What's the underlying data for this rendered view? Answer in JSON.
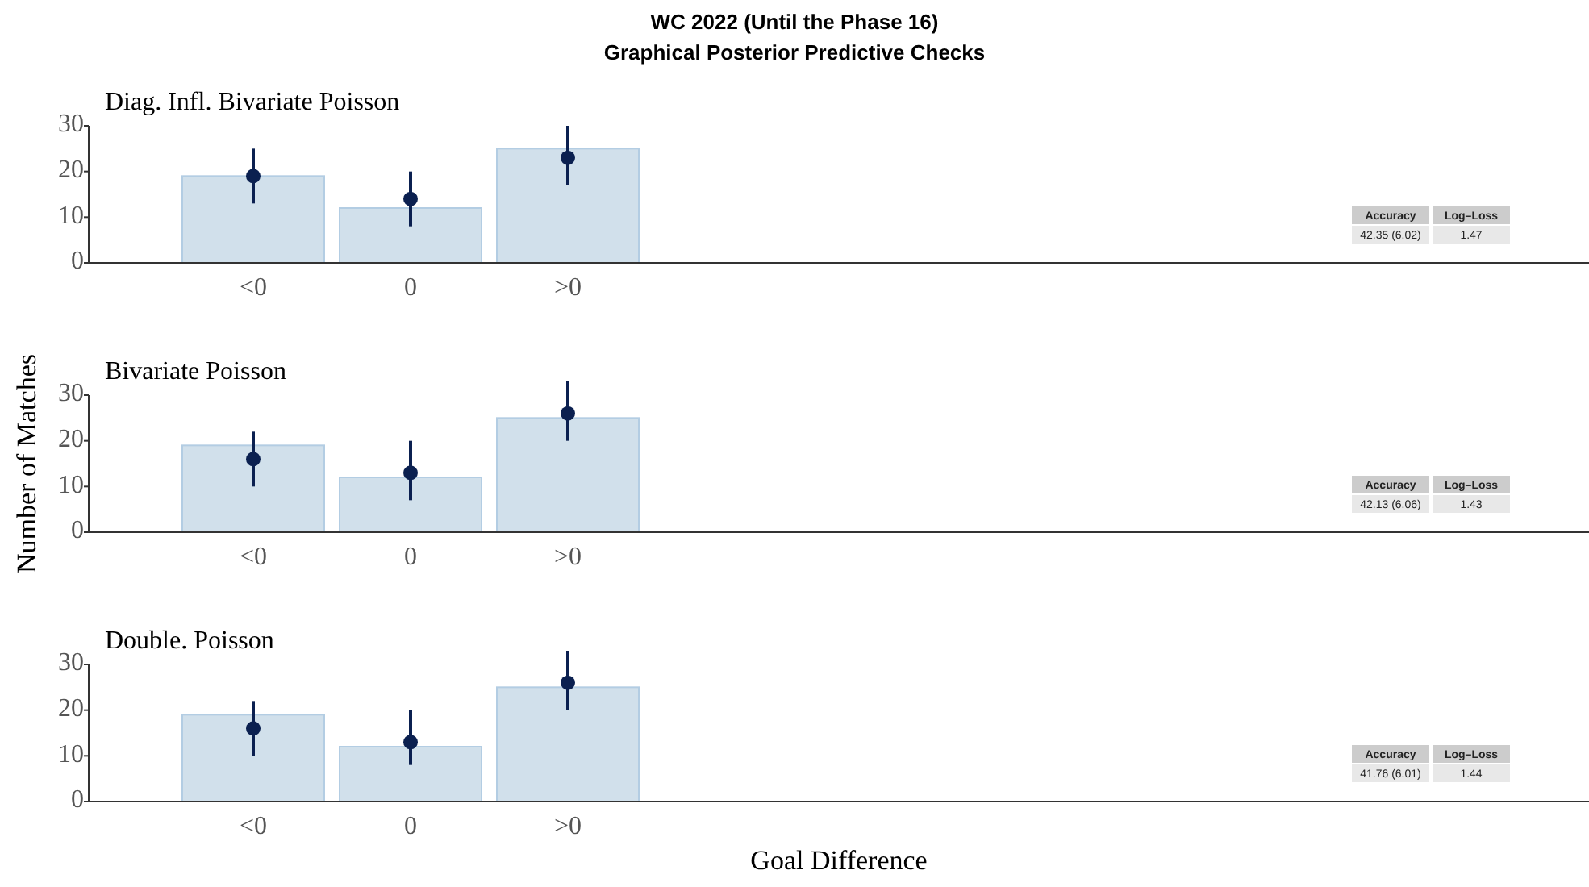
{
  "chart_data": [
    {
      "type": "other",
      "title": "WC 2022 (Until the Phase 16)",
      "subtitle": "Graphical Posterior Predictive Checks"
    },
    {
      "type": "bar",
      "title": "Diag. Infl. Bivariate Poisson",
      "categories": [
        "<0",
        "0",
        ">0"
      ],
      "ylim": [
        0,
        30
      ],
      "yticks": [
        0,
        10,
        20,
        30
      ],
      "series": [
        {
          "type": "bar",
          "color": "#d1e0eb",
          "values": [
            19,
            12,
            25
          ]
        },
        {
          "type": "scatter",
          "color": "#0b2050",
          "values": [
            19,
            14,
            23
          ],
          "errors": [
            [
              13,
              25
            ],
            [
              8,
              20
            ],
            [
              17,
              30
            ]
          ]
        }
      ],
      "annotations": [
        "Accuracy",
        "Log–Loss",
        "42.35 (6.02)",
        "1.47"
      ]
    },
    {
      "type": "bar",
      "title": "Bivariate Poisson",
      "ylabel": "Number of Matches",
      "categories": [
        "<0",
        "0",
        ">0"
      ],
      "ylim": [
        0,
        30
      ],
      "yticks": [
        0,
        10,
        20,
        30
      ],
      "series": [
        {
          "type": "bar",
          "color": "#d1e0eb",
          "values": [
            19,
            12,
            25
          ]
        },
        {
          "type": "scatter",
          "color": "#0b2050",
          "values": [
            16,
            13,
            26
          ],
          "errors": [
            [
              10,
              22
            ],
            [
              7,
              20
            ],
            [
              20,
              33
            ]
          ]
        }
      ],
      "annotations": [
        "Accuracy",
        "Log–Loss",
        "42.13 (6.06)",
        "1.43"
      ]
    },
    {
      "type": "bar",
      "title": "Double. Poisson",
      "xlabel": "Goal Difference",
      "categories": [
        "<0",
        "0",
        ">0"
      ],
      "ylim": [
        0,
        30
      ],
      "yticks": [
        0,
        10,
        20,
        30
      ],
      "series": [
        {
          "type": "bar",
          "color": "#d1e0eb",
          "values": [
            19,
            12,
            25
          ]
        },
        {
          "type": "scatter",
          "color": "#0b2050",
          "values": [
            16,
            13,
            26
          ],
          "errors": [
            [
              10,
              22
            ],
            [
              8,
              20
            ],
            [
              20,
              33
            ]
          ]
        }
      ],
      "annotations": [
        "Accuracy",
        "Log–Loss",
        "41.76 (6.01)",
        "1.44"
      ]
    }
  ]
}
